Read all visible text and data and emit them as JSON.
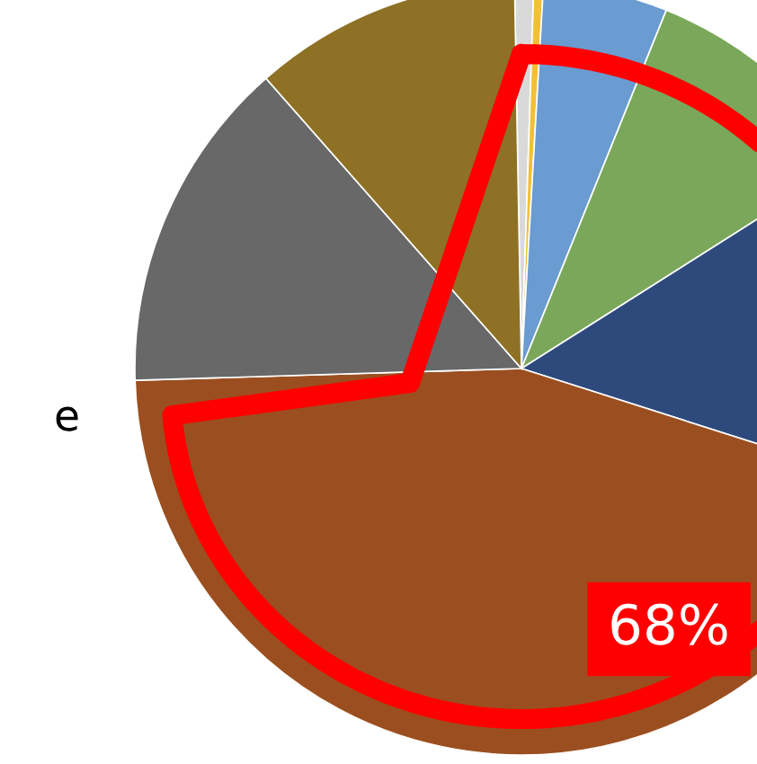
{
  "chart_data": {
    "type": "pie",
    "categories": [
      null,
      null,
      null,
      null,
      null,
      null,
      null,
      null
    ],
    "values": [
      0.8,
      0.4,
      5.2,
      9.9,
      13.9,
      44.6,
      14.0,
      11.2
    ],
    "colors": [
      "#d9d9d9",
      "#f2c037",
      "#6a9bd1",
      "#7aa75a",
      "#2e4a7d",
      "#9b4f20",
      "#686868",
      "#8e7125"
    ],
    "annotations": [
      "68%",
      "e"
    ]
  }
}
